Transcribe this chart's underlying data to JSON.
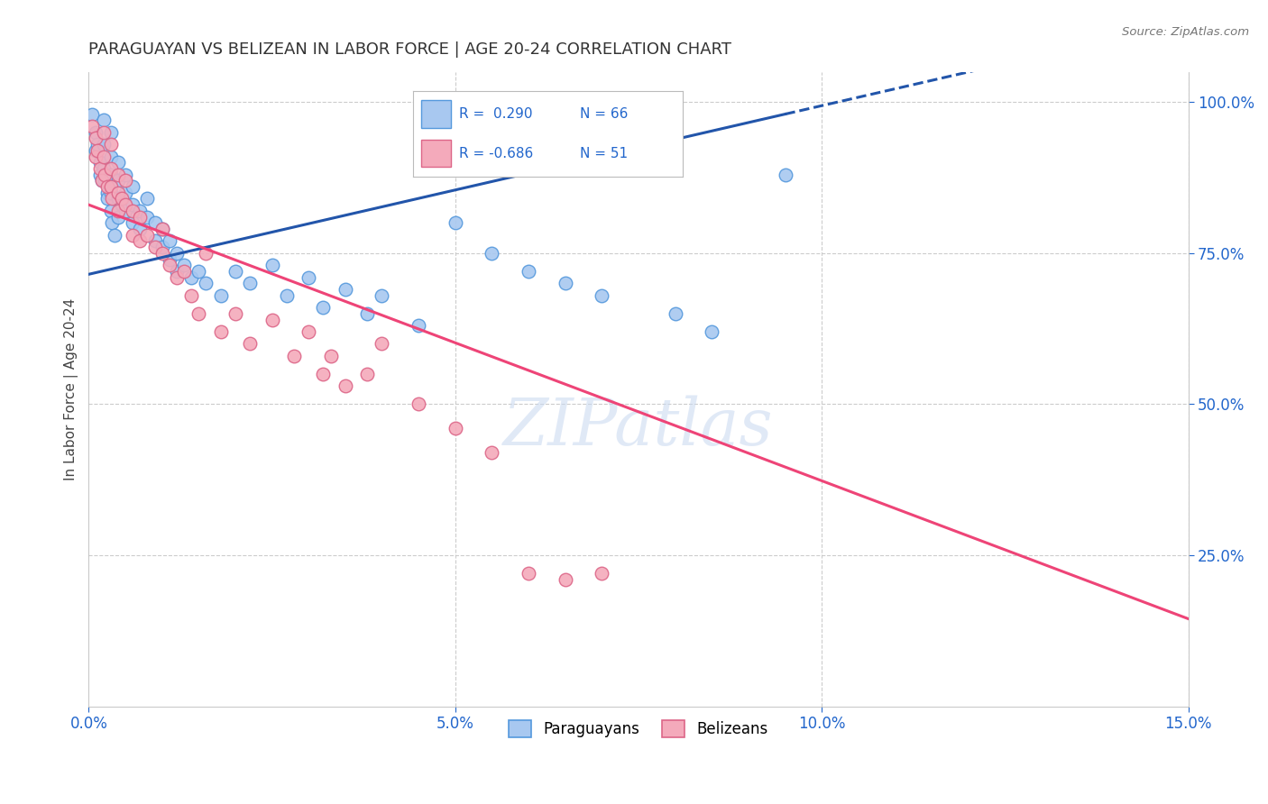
{
  "title": "PARAGUAYAN VS BELIZEAN IN LABOR FORCE | AGE 20-24 CORRELATION CHART",
  "source": "Source: ZipAtlas.com",
  "ylabel": "In Labor Force | Age 20-24",
  "xlim": [
    0.0,
    0.15
  ],
  "ylim": [
    0.0,
    1.05
  ],
  "ytick_labels": [
    "25.0%",
    "50.0%",
    "75.0%",
    "100.0%"
  ],
  "ytick_values": [
    0.25,
    0.5,
    0.75,
    1.0
  ],
  "xtick_labels": [
    "0.0%",
    "5.0%",
    "10.0%",
    "15.0%"
  ],
  "xtick_values": [
    0.0,
    0.05,
    0.1,
    0.15
  ],
  "paraguayan_color": "#A8C8F0",
  "belizean_color": "#F4AABB",
  "paraguayan_edge": "#5599DD",
  "belizean_edge": "#DD6688",
  "paraguayan_R": 0.29,
  "paraguayan_N": 66,
  "belizean_R": -0.686,
  "belizean_N": 51,
  "trend_paraguayan_color": "#2255AA",
  "trend_belizean_color": "#EE4477",
  "watermark": "ZIPatlas",
  "par_trend_x0": 0.0,
  "par_trend_y0": 0.715,
  "par_trend_x1": 0.095,
  "par_trend_y1": 0.98,
  "par_trend_dash_x0": 0.095,
  "par_trend_dash_x1": 0.15,
  "bel_trend_x0": 0.0,
  "bel_trend_y0": 0.83,
  "bel_trend_x1": 0.15,
  "bel_trend_y1": 0.145,
  "paraguayan_x": [
    0.0005,
    0.001,
    0.001,
    0.0012,
    0.0015,
    0.0015,
    0.0018,
    0.002,
    0.002,
    0.002,
    0.0022,
    0.0025,
    0.0025,
    0.003,
    0.003,
    0.003,
    0.003,
    0.003,
    0.0032,
    0.0035,
    0.004,
    0.004,
    0.004,
    0.004,
    0.0045,
    0.005,
    0.005,
    0.005,
    0.006,
    0.006,
    0.006,
    0.007,
    0.007,
    0.008,
    0.008,
    0.009,
    0.009,
    0.01,
    0.01,
    0.011,
    0.011,
    0.012,
    0.012,
    0.013,
    0.014,
    0.015,
    0.016,
    0.018,
    0.02,
    0.022,
    0.025,
    0.027,
    0.03,
    0.032,
    0.035,
    0.038,
    0.04,
    0.045,
    0.05,
    0.055,
    0.06,
    0.065,
    0.07,
    0.08,
    0.085,
    0.095
  ],
  "paraguayan_y": [
    0.98,
    0.95,
    0.92,
    0.93,
    0.9,
    0.88,
    0.87,
    0.97,
    0.93,
    0.89,
    0.87,
    0.85,
    0.84,
    0.95,
    0.91,
    0.88,
    0.85,
    0.82,
    0.8,
    0.78,
    0.9,
    0.87,
    0.84,
    0.81,
    0.83,
    0.88,
    0.85,
    0.82,
    0.86,
    0.83,
    0.8,
    0.82,
    0.79,
    0.84,
    0.81,
    0.8,
    0.77,
    0.79,
    0.76,
    0.77,
    0.74,
    0.75,
    0.72,
    0.73,
    0.71,
    0.72,
    0.7,
    0.68,
    0.72,
    0.7,
    0.73,
    0.68,
    0.71,
    0.66,
    0.69,
    0.65,
    0.68,
    0.63,
    0.8,
    0.75,
    0.72,
    0.7,
    0.68,
    0.65,
    0.62,
    0.88
  ],
  "belizean_x": [
    0.0005,
    0.001,
    0.001,
    0.0012,
    0.0015,
    0.0018,
    0.002,
    0.002,
    0.0022,
    0.0025,
    0.003,
    0.003,
    0.003,
    0.0032,
    0.004,
    0.004,
    0.004,
    0.0045,
    0.005,
    0.005,
    0.006,
    0.006,
    0.007,
    0.007,
    0.008,
    0.009,
    0.01,
    0.01,
    0.011,
    0.012,
    0.013,
    0.014,
    0.015,
    0.016,
    0.018,
    0.02,
    0.022,
    0.025,
    0.028,
    0.03,
    0.032,
    0.033,
    0.035,
    0.038,
    0.04,
    0.045,
    0.05,
    0.055,
    0.06,
    0.065,
    0.07
  ],
  "belizean_y": [
    0.96,
    0.94,
    0.91,
    0.92,
    0.89,
    0.87,
    0.95,
    0.91,
    0.88,
    0.86,
    0.93,
    0.89,
    0.86,
    0.84,
    0.88,
    0.85,
    0.82,
    0.84,
    0.87,
    0.83,
    0.82,
    0.78,
    0.81,
    0.77,
    0.78,
    0.76,
    0.79,
    0.75,
    0.73,
    0.71,
    0.72,
    0.68,
    0.65,
    0.75,
    0.62,
    0.65,
    0.6,
    0.64,
    0.58,
    0.62,
    0.55,
    0.58,
    0.53,
    0.55,
    0.6,
    0.5,
    0.46,
    0.42,
    0.22,
    0.21,
    0.22
  ]
}
